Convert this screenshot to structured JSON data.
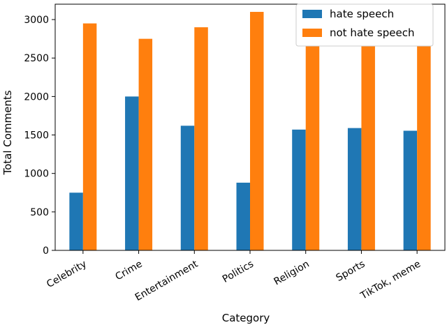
{
  "chart_data": {
    "type": "bar",
    "categories": [
      "Celebrity",
      "Crime",
      "Entertainment",
      "Politics",
      "Religion",
      "Sports",
      "TikTok, meme"
    ],
    "series": [
      {
        "name": "hate speech",
        "color": "#1f77b4",
        "values": [
          750,
          2000,
          1620,
          880,
          1570,
          1590,
          1555
        ]
      },
      {
        "name": "not hate speech",
        "color": "#ff7f0e",
        "values": [
          2950,
          2750,
          2900,
          3100,
          2780,
          2780,
          2660
        ]
      }
    ],
    "title": "",
    "xlabel": "Category",
    "ylabel": "Total Comments",
    "ylim": [
      0,
      3200
    ],
    "yticks": [
      0,
      500,
      1000,
      1500,
      2000,
      2500,
      3000
    ],
    "grid": false,
    "legend_position": "top-right"
  }
}
